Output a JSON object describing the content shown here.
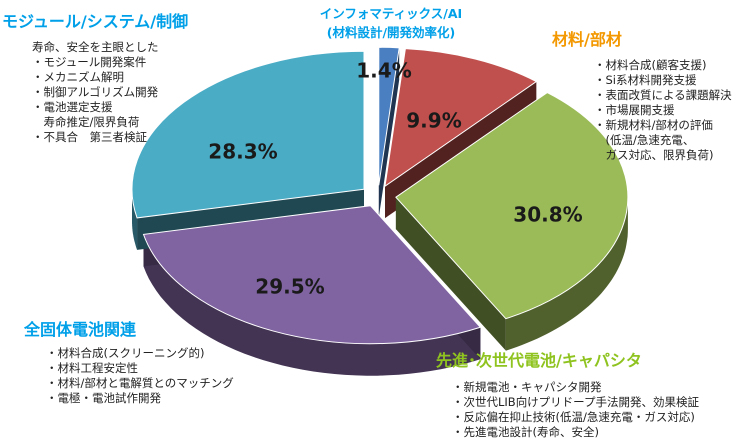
{
  "chart_data": {
    "type": "pie",
    "title": "",
    "style": "3d-exploded",
    "series": [
      {
        "name": "インフォマティックス/AI",
        "subtitle": "(材料設計/開発効率化)",
        "value": 1.4,
        "label": "1.4%",
        "color": "#4a7fc1",
        "items": []
      },
      {
        "name": "材料/部材",
        "value": 9.9,
        "label": "9.9%",
        "color": "#c0504d",
        "items": [
          "・材料合成(顧客支援)",
          "・Si系材料開発支援",
          "・表面改質による課題解決",
          "・市場展開支援",
          "・新規材料/部材の評価",
          "　(低温/急速充電、",
          "　ガス対応、限界負荷)"
        ]
      },
      {
        "name": "先進･次世代電池/キャパシタ",
        "value": 30.8,
        "label": "30.8%",
        "color": "#9bbb59",
        "items": [
          "・新規電池・キャパシタ開発",
          "・次世代LIB向けプリドープ手法開発、効果検証",
          "・反応偏在抑止技術(低温/急速充電・ガス対応)",
          "・先進電池設計(寿命、安全)"
        ]
      },
      {
        "name": "全固体電池関連",
        "value": 29.5,
        "label": "29.5%",
        "color": "#8064a2",
        "items": [
          "・材料合成(スクリーニング的)",
          "・材料工程安定性",
          "・材料/部材と電解質とのマッチング",
          "・電極・電池試作開発"
        ]
      },
      {
        "name": "モジュール/システム/制御",
        "value": 28.3,
        "label": "28.3%",
        "color": "#4bacc6",
        "items": [
          "寿命、安全を主眼とした",
          "・モジュール開発案件",
          "・メカニズム解明",
          "・制御アルゴリズム開発",
          "・電池選定支援",
          "　寿命推定/限界負荷",
          "・不具合　第三者検証"
        ]
      }
    ]
  },
  "colors": {
    "title_blue": "#00a0e9",
    "title_orange": "#f39800",
    "title_green": "#8fc31f"
  }
}
